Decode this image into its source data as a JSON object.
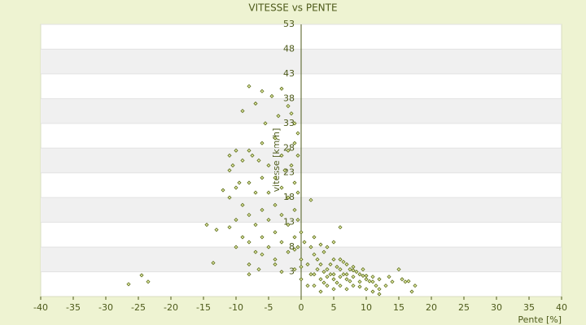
{
  "chart_data": {
    "type": "scatter",
    "title": "VITESSE vs PENTE",
    "xlabel": "Pente [%]",
    "ylabel": "vitesse [km/h]",
    "series": [
      {
        "color": "#5b6b1a",
        "x": [
          -26.5,
          -24.5,
          -23.5,
          -13.5,
          -14.5,
          -13,
          -8,
          -6,
          -4.5,
          -3,
          -2,
          -1.5,
          -9,
          -7,
          -3.5,
          -5.5,
          -1,
          -0.5,
          -4,
          -6,
          -8,
          -10,
          -11,
          -10.5,
          -11,
          -9,
          -7.5,
          -6.5,
          -5,
          -3,
          -2,
          -1,
          -0.5,
          -1.5,
          -2.5,
          -4,
          -6,
          -8,
          -9.5,
          -10,
          -12,
          -11,
          -9,
          -7,
          -5,
          -3,
          -1,
          -0.5,
          -2,
          -4,
          -6,
          -8,
          -10,
          -11,
          -9,
          -7,
          -5,
          -3,
          -1,
          -0.5,
          -2,
          -4,
          -6,
          -8,
          -10,
          -7,
          -5,
          -3,
          -1,
          -0.5,
          -2,
          -4,
          -6,
          -8,
          -6.5,
          -4,
          -3,
          -1,
          -8,
          -1,
          0,
          0,
          0,
          0,
          1.5,
          2,
          1.5,
          2.5,
          3,
          3.5,
          4,
          5,
          6,
          4,
          5,
          6,
          7,
          8,
          9,
          10,
          11,
          12,
          13,
          14,
          15,
          15.5,
          16,
          17,
          17.5,
          16.5,
          2,
          3,
          4,
          5,
          6,
          7,
          8,
          9,
          10,
          11,
          12,
          13.5,
          2.5,
          3.5,
          4.5,
          5.5,
          6.5,
          7.5,
          8.5,
          9.5,
          10.5,
          11.5,
          3,
          5,
          6,
          7,
          8,
          4,
          5.5,
          6.5,
          7.5,
          9,
          10,
          11,
          12,
          1,
          1.5,
          2,
          3.5,
          4.5,
          6,
          7,
          8,
          9.5,
          2,
          3,
          5,
          1,
          0.5
        ],
        "y": [
          0.5,
          2.3,
          1,
          4.8,
          12.5,
          11.5,
          40.5,
          39.5,
          38.5,
          40,
          36.5,
          35,
          35.5,
          37,
          34.5,
          33,
          33,
          31,
          30,
          29,
          27.5,
          27.5,
          26.5,
          24.5,
          23.5,
          25.5,
          26.5,
          25.5,
          24.5,
          26.5,
          27.5,
          29,
          26.5,
          24.5,
          23.5,
          22,
          22,
          21,
          21,
          20,
          19.5,
          18,
          16.5,
          19,
          19,
          20,
          21,
          19,
          18,
          16.5,
          15.5,
          14.5,
          13.5,
          12,
          10,
          12.5,
          13.5,
          14.5,
          15.5,
          13.5,
          12.5,
          11,
          10,
          9,
          8,
          7,
          8,
          9,
          10,
          8,
          7,
          5.5,
          6.5,
          4.5,
          3.5,
          4.5,
          3,
          3.5,
          2.5,
          7.5,
          11,
          5.5,
          1.5,
          4,
          17.5,
          10,
          8,
          5.5,
          4.5,
          7,
          8,
          9,
          12,
          3.5,
          2.5,
          3.5,
          2.5,
          2,
          2.5,
          1.5,
          1,
          1.5,
          0.2,
          1,
          3.5,
          1.5,
          1,
          -1,
          0.2,
          1.1,
          2.5,
          1.5,
          0.2,
          1.5,
          0.2,
          1.5,
          0.2,
          1,
          -0.5,
          2,
          -0.5,
          2,
          3.5,
          3,
          4.5,
          4,
          5,
          3.5,
          3,
          2.2,
          1.1,
          0.2,
          -1,
          -0.5,
          2,
          -0.5,
          3.3,
          2,
          0.8,
          2.5,
          1.1,
          0,
          2.2,
          -1,
          -1.5,
          4.5,
          2.5,
          0.2,
          0.8,
          2.5,
          5.5,
          4.5,
          4,
          3.5,
          6.5,
          8.5,
          5.5,
          0.2,
          9
        ]
      }
    ],
    "xlim": [
      -40,
      40
    ],
    "xticks": [
      -40,
      -35,
      -30,
      -25,
      -20,
      -15,
      -10,
      -5,
      0,
      5,
      10,
      15,
      20,
      25,
      30,
      35,
      40
    ],
    "ylim": [
      -2,
      53
    ],
    "yticks": [
      3,
      8,
      13,
      18,
      23,
      28,
      33,
      38,
      43,
      48,
      53
    ],
    "grid": true
  }
}
